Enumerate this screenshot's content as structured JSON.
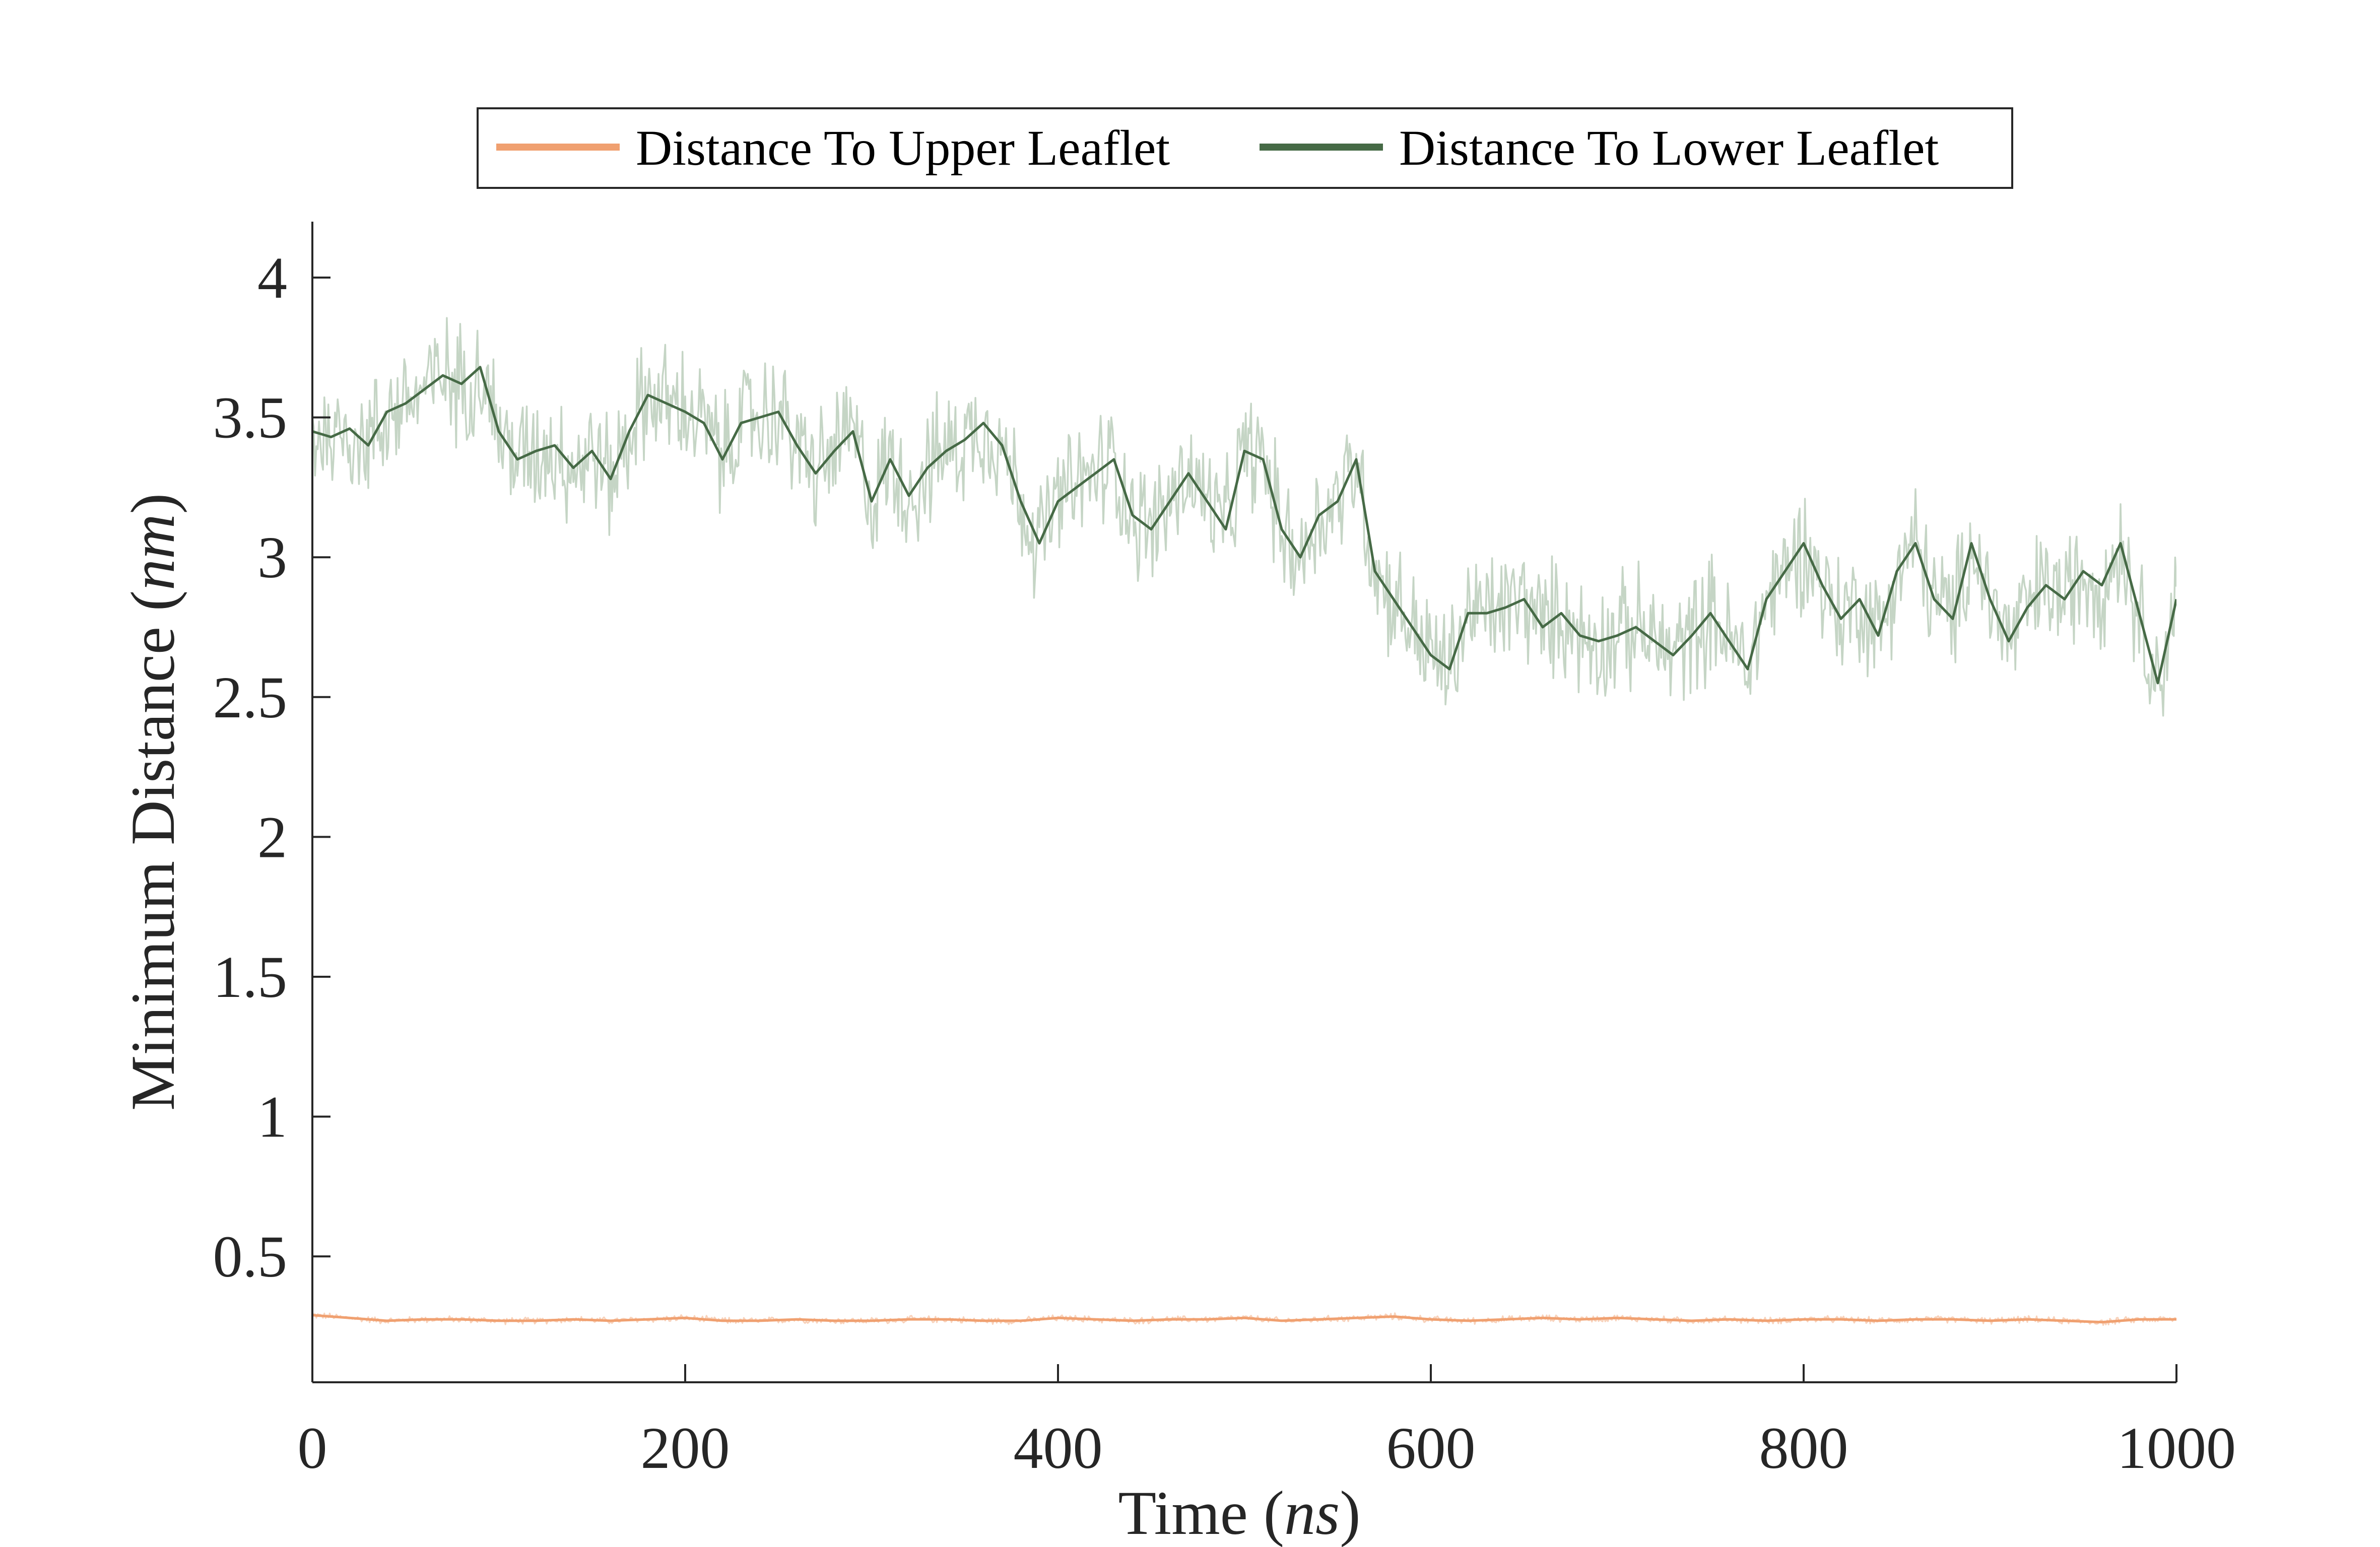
{
  "chart_data": {
    "type": "line",
    "title": "",
    "xlabel": {
      "prefix": "Time (",
      "unit": "ns",
      "suffix": ")"
    },
    "ylabel": {
      "prefix": "Minimum Distance (",
      "unit": "nm",
      "suffix": ")"
    },
    "xlim": [
      0,
      1000
    ],
    "ylim": [
      0.05,
      4.2
    ],
    "x_ticks": [
      0,
      200,
      400,
      600,
      800,
      1000
    ],
    "x_tick_labels": [
      "0",
      "200",
      "400",
      "600",
      "800",
      "1000"
    ],
    "y_ticks": [
      0.5,
      1,
      1.5,
      2,
      2.5,
      3,
      3.5,
      4
    ],
    "y_tick_labels": [
      "0.5",
      "1",
      "1.5",
      "2",
      "2.5",
      "3",
      "3.5",
      "4"
    ],
    "grid": false,
    "legend_position": "top-center",
    "legend": [
      "Distance To Upper Leaflet",
      "Distance To Lower Leaflet"
    ],
    "series": [
      {
        "name": "Distance To Upper Leaflet",
        "color": "#f0a070",
        "raw_color": "#f8d2bb",
        "x": [
          0,
          20,
          40,
          60,
          80,
          100,
          120,
          140,
          160,
          180,
          200,
          220,
          240,
          260,
          280,
          300,
          320,
          340,
          360,
          380,
          400,
          420,
          440,
          460,
          480,
          500,
          520,
          540,
          560,
          580,
          600,
          620,
          640,
          660,
          680,
          700,
          720,
          740,
          760,
          780,
          800,
          820,
          840,
          860,
          880,
          900,
          920,
          940,
          960,
          980,
          1000
        ],
        "y": [
          0.29,
          0.28,
          0.27,
          0.275,
          0.275,
          0.27,
          0.27,
          0.275,
          0.27,
          0.275,
          0.28,
          0.27,
          0.27,
          0.275,
          0.27,
          0.27,
          0.275,
          0.275,
          0.27,
          0.27,
          0.28,
          0.275,
          0.27,
          0.275,
          0.275,
          0.28,
          0.27,
          0.275,
          0.28,
          0.285,
          0.275,
          0.27,
          0.275,
          0.28,
          0.275,
          0.28,
          0.275,
          0.27,
          0.275,
          0.27,
          0.275,
          0.275,
          0.27,
          0.275,
          0.275,
          0.27,
          0.275,
          0.27,
          0.265,
          0.275,
          0.275
        ]
      },
      {
        "name": "Distance To Lower Leaflet",
        "color": "#466a46",
        "raw_color": "#c5d5c5",
        "x": [
          0,
          10,
          20,
          30,
          40,
          50,
          60,
          70,
          80,
          90,
          100,
          110,
          120,
          130,
          140,
          150,
          160,
          170,
          180,
          190,
          200,
          210,
          220,
          230,
          240,
          250,
          260,
          270,
          280,
          290,
          300,
          310,
          320,
          330,
          340,
          350,
          360,
          370,
          380,
          390,
          400,
          410,
          420,
          430,
          440,
          450,
          460,
          470,
          480,
          490,
          500,
          510,
          520,
          530,
          540,
          550,
          560,
          570,
          580,
          590,
          600,
          610,
          620,
          630,
          640,
          650,
          660,
          670,
          680,
          690,
          700,
          710,
          720,
          730,
          740,
          750,
          760,
          770,
          780,
          790,
          800,
          810,
          820,
          830,
          840,
          850,
          860,
          870,
          880,
          890,
          900,
          910,
          920,
          930,
          940,
          950,
          960,
          970,
          980,
          990,
          1000
        ],
        "y": [
          3.45,
          3.43,
          3.46,
          3.4,
          3.52,
          3.55,
          3.6,
          3.65,
          3.62,
          3.68,
          3.45,
          3.35,
          3.38,
          3.4,
          3.32,
          3.38,
          3.28,
          3.45,
          3.58,
          3.55,
          3.52,
          3.48,
          3.35,
          3.48,
          3.5,
          3.52,
          3.4,
          3.3,
          3.38,
          3.45,
          3.2,
          3.35,
          3.22,
          3.32,
          3.38,
          3.42,
          3.48,
          3.4,
          3.2,
          3.05,
          3.2,
          3.25,
          3.3,
          3.35,
          3.15,
          3.1,
          3.2,
          3.3,
          3.2,
          3.1,
          3.38,
          3.35,
          3.1,
          3.0,
          3.15,
          3.2,
          3.35,
          2.95,
          2.85,
          2.75,
          2.65,
          2.6,
          2.8,
          2.8,
          2.82,
          2.85,
          2.75,
          2.8,
          2.72,
          2.7,
          2.72,
          2.75,
          2.7,
          2.65,
          2.72,
          2.8,
          2.7,
          2.6,
          2.85,
          2.95,
          3.05,
          2.9,
          2.78,
          2.85,
          2.72,
          2.95,
          3.05,
          2.85,
          2.78,
          3.05,
          2.85,
          2.7,
          2.82,
          2.9,
          2.85,
          2.95,
          2.9,
          3.05,
          2.8,
          2.55,
          2.85
        ]
      }
    ]
  }
}
